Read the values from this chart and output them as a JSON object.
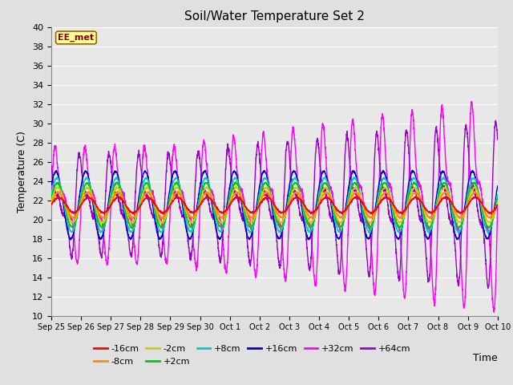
{
  "title": "Soil/Water Temperature Set 2",
  "xlabel": "Time",
  "ylabel": "Temperature (C)",
  "ylim": [
    10,
    40
  ],
  "yticks": [
    10,
    12,
    14,
    16,
    18,
    20,
    22,
    24,
    26,
    28,
    30,
    32,
    34,
    36,
    38,
    40
  ],
  "annotation_text": "EE_met",
  "annotation_color": "#8B0000",
  "annotation_bg": "#FFFF99",
  "annotation_border": "#996600",
  "series_colors": {
    "-16cm": "#FF0000",
    "-8cm": "#FF8C00",
    "-2cm": "#CCCC00",
    "+2cm": "#00CC00",
    "+8cm": "#00CCCC",
    "+16cm": "#0000CC",
    "+32cm": "#FF00FF",
    "+64cm": "#9900CC"
  },
  "series_order": [
    "-16cm",
    "-8cm",
    "-2cm",
    "+2cm",
    "+8cm",
    "+16cm",
    "+32cm",
    "+64cm"
  ],
  "x_tick_labels": [
    "Sep 25",
    "Sep 26",
    "Sep 27",
    "Sep 28",
    "Sep 29",
    "Sep 30",
    "Oct 1",
    "Oct 2",
    "Oct 3",
    "Oct 4",
    "Oct 5",
    "Oct 6",
    "Oct 7",
    "Oct 8",
    "Oct 9",
    "Oct 10"
  ],
  "num_points": 3000,
  "start_day": 0,
  "end_day": 15,
  "bg_color": "#E8E8E8",
  "line_width": 1.0
}
